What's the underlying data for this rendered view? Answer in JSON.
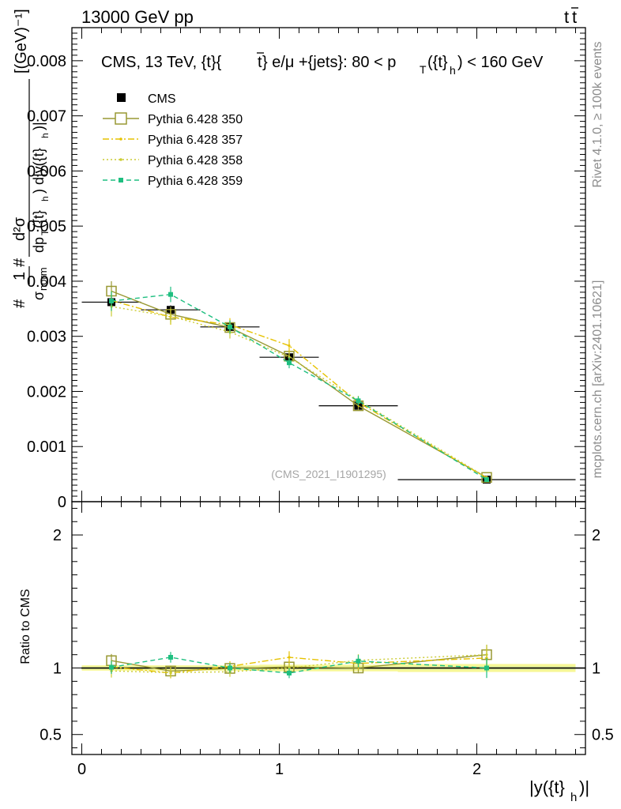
{
  "header": {
    "left": "13000 GeV pp",
    "right": "t",
    "right_bar": "t"
  },
  "side": {
    "rivet": "Rivet 4.1.0, ≥ 100k events",
    "mcplots": "mcplots.cern.ch [arXiv:2401.10621]"
  },
  "chart_data": {
    "type": "line",
    "title": "CMS, 13 TeV, {t}{t̄} e/μ +{jets}: 80 < p_T({t}_h) < 160 GeV",
    "title_parts": {
      "main": "CMS, 13 TeV, {t}{",
      "bar_t": "t",
      "mid": "} e/μ +{jets}: 80 <  p",
      "sub_T": "T",
      "paren": "({t}",
      "sub_h": "h",
      "end": ") < 160 GeV"
    },
    "watermark": "(CMS_2021_I1901295)",
    "xlabel": "|y({t}_h)|",
    "xlabel_parts": {
      "main": "|y({t}",
      "sub": "h",
      "end": ")|"
    },
    "ylabel": "1/σ_norm d²σ / dp_T({t}_h) d|y({t}_h)| [(GeV)^-1]",
    "ylabel_parts": [
      "# 1",
      "σ_norm",
      "# d²σ",
      "dp_T({t}_h) d|y({t}_h)|",
      "[(GeV)⁻¹]"
    ],
    "ratio_ylabel": "Ratio to CMS",
    "xlim": [
      -0.05,
      2.55
    ],
    "ylim": [
      0,
      0.0086
    ],
    "ratio_ylim": [
      0.35,
      2.25
    ],
    "x_ticks": [
      0,
      1,
      2
    ],
    "x_tick_labels": [
      "0",
      "1",
      "2"
    ],
    "y_ticks": [
      0,
      0.001,
      0.002,
      0.003,
      0.004,
      0.005,
      0.006,
      0.007,
      0.008
    ],
    "y_tick_labels": [
      "0",
      "0.001",
      "0.002",
      "0.003",
      "0.004",
      "0.005",
      "0.006",
      "0.007",
      "0.008"
    ],
    "ratio_ticks": [
      0.5,
      1,
      2
    ],
    "ratio_tick_labels": [
      "0.5",
      "1",
      "2"
    ],
    "x": [
      0.15,
      0.45,
      0.75,
      1.05,
      1.4,
      2.05
    ],
    "x_err": [
      0.15,
      0.15,
      0.15,
      0.15,
      0.2,
      0.45
    ],
    "data": {
      "name": "CMS",
      "values": [
        0.00362,
        0.00348,
        0.00317,
        0.00262,
        0.00174,
        0.0004
      ],
      "errors": [
        8e-05,
        8e-05,
        7e-05,
        7e-05,
        5e-05,
        2e-05
      ],
      "band_ratio_err": [
        0.02,
        0.02,
        0.02,
        0.025,
        0.025,
        0.03
      ]
    },
    "series": [
      {
        "name": "Pythia 6.428 350",
        "color": "#999933",
        "style": "solid",
        "marker": "open-square",
        "values": [
          0.00382,
          0.0034,
          0.00316,
          0.00264,
          0.00174,
          0.00044
        ],
        "errors": [
          0.00018,
          0.00014,
          0.00012,
          0.0001,
          7e-05,
          3e-05
        ]
      },
      {
        "name": "Pythia 6.428 357",
        "color": "#e6c200",
        "style": "dashdot",
        "marker": "dot",
        "values": [
          0.00365,
          0.00335,
          0.00321,
          0.00283,
          0.0018,
          0.00043
        ],
        "errors": [
          0.00018,
          0.00014,
          0.00012,
          0.00012,
          8e-05,
          3e-05
        ]
      },
      {
        "name": "Pythia 6.428 358",
        "color": "#cccc33",
        "style": "dotted",
        "marker": "dot",
        "values": [
          0.00354,
          0.00336,
          0.00308,
          0.00262,
          0.00184,
          0.00044
        ],
        "errors": [
          0.00018,
          0.00014,
          0.00012,
          0.0001,
          8e-05,
          3e-05
        ]
      },
      {
        "name": "Pythia 6.428 359",
        "color": "#1fbf80",
        "style": "dashed",
        "marker": "filled-square",
        "values": [
          0.00364,
          0.00376,
          0.00317,
          0.00252,
          0.00183,
          0.0004
        ],
        "errors": [
          0.00018,
          0.00014,
          0.00012,
          0.0001,
          8e-05,
          3e-05
        ]
      }
    ]
  }
}
